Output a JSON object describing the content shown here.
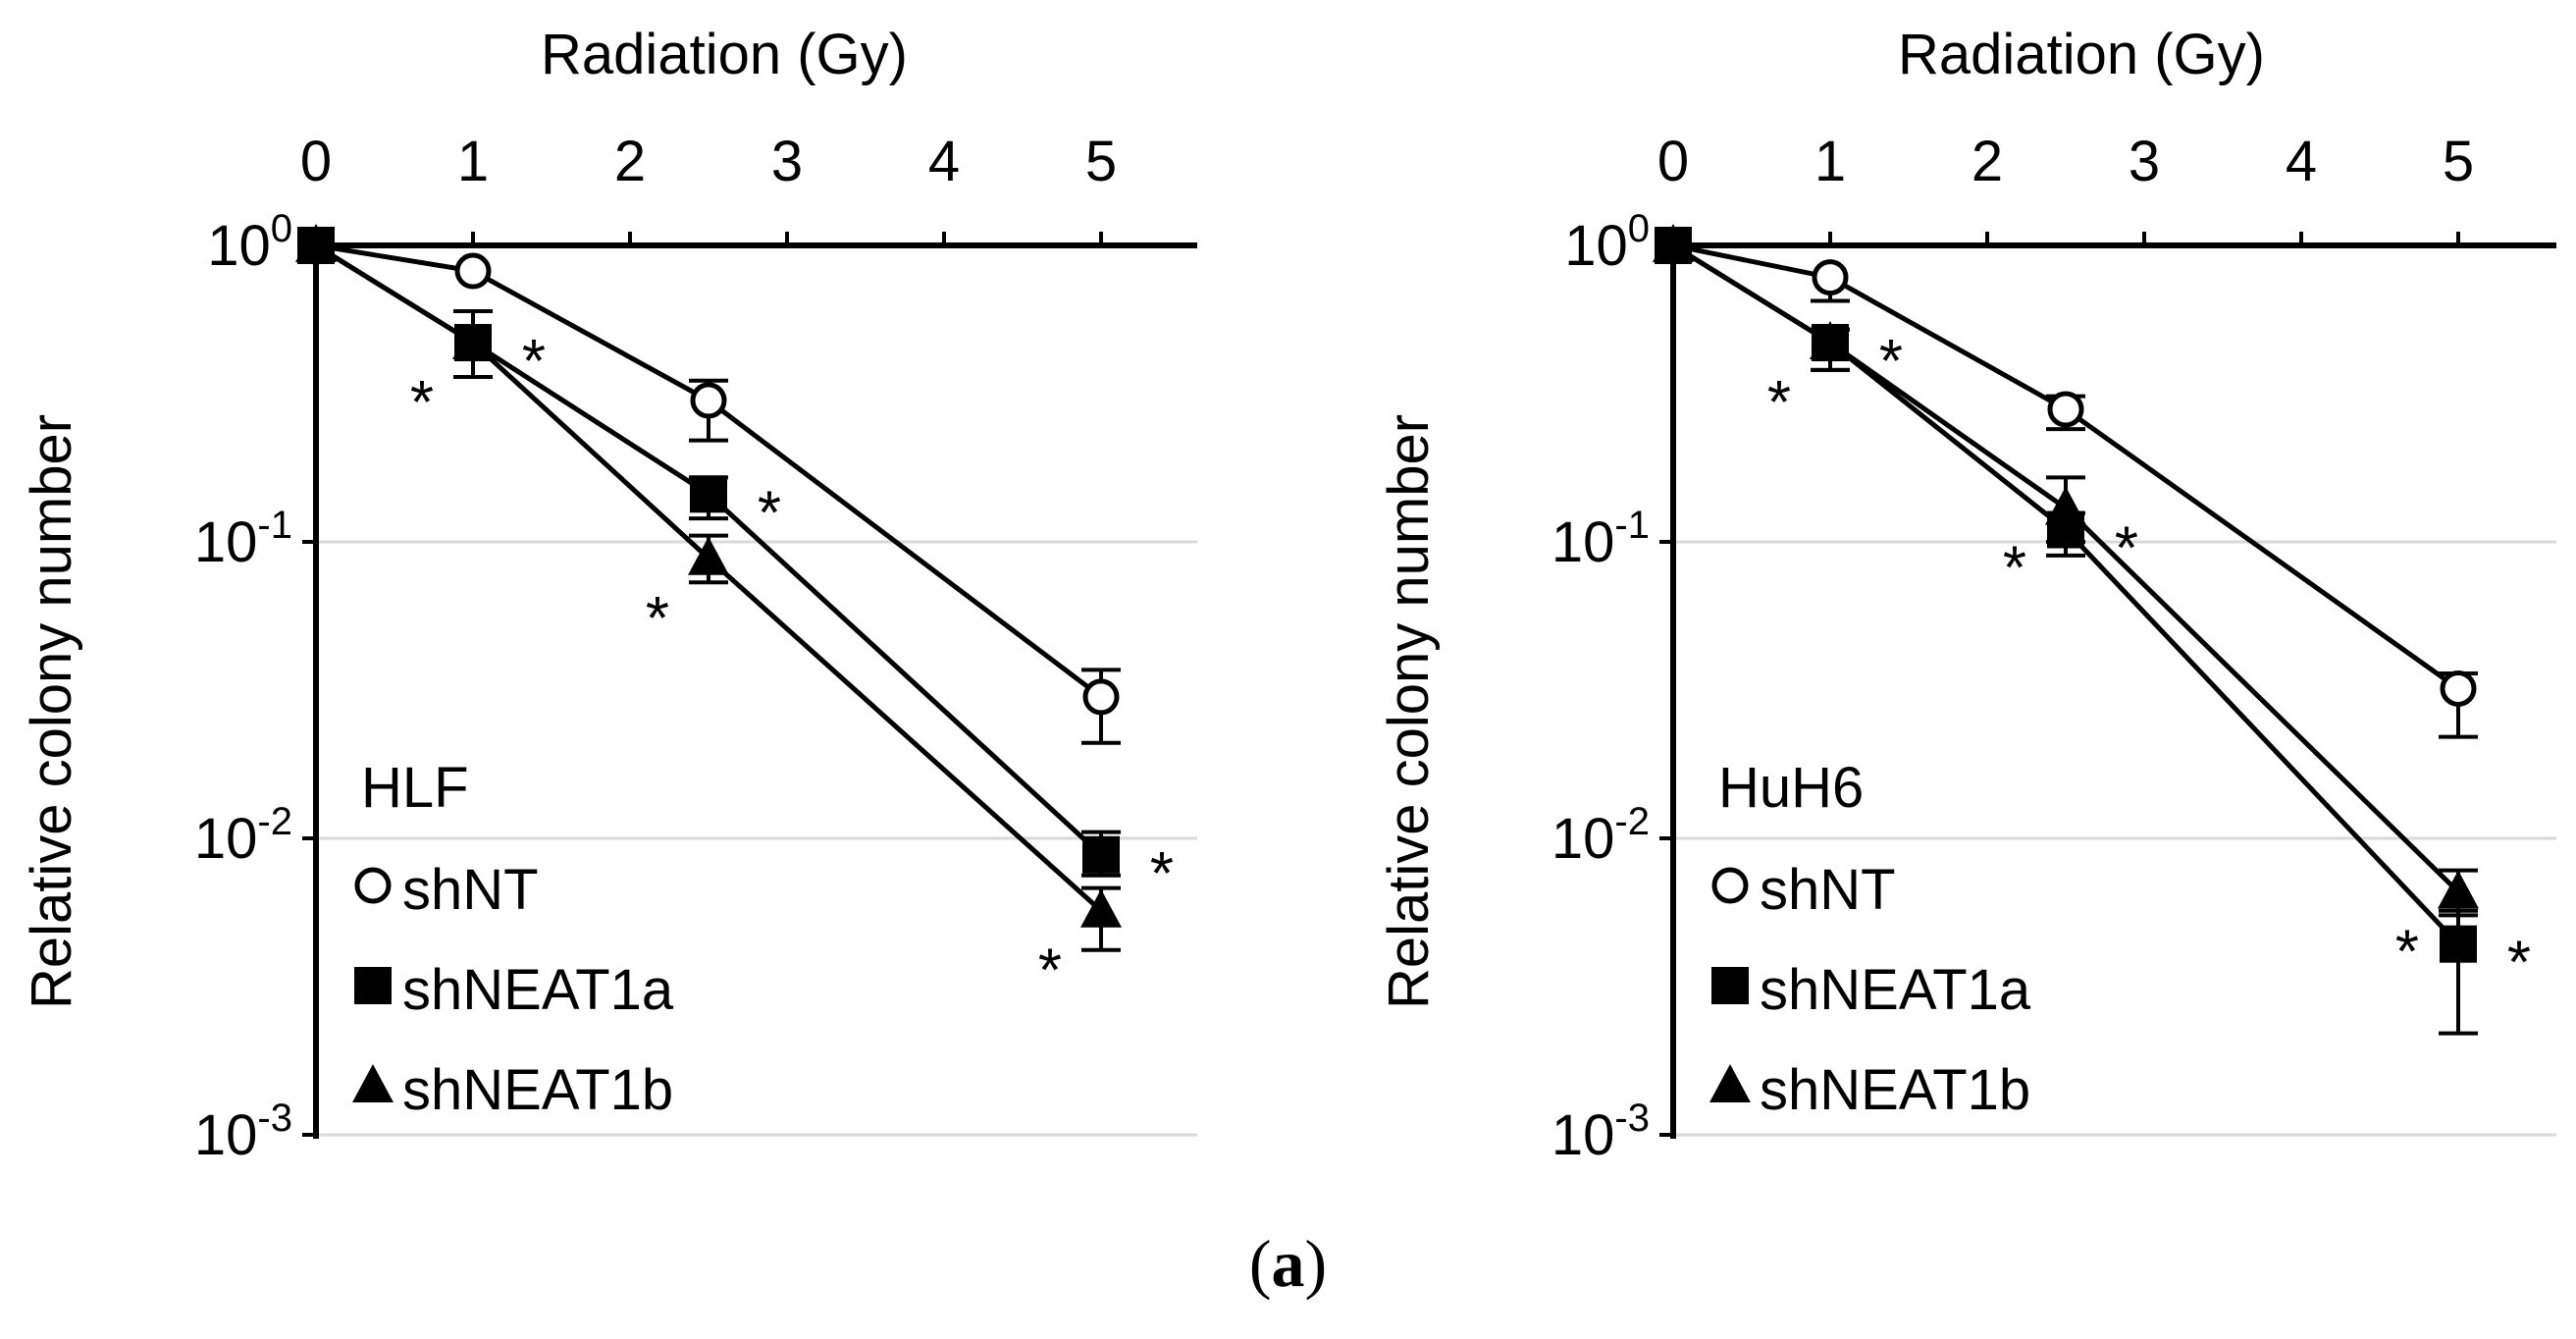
{
  "caption": {
    "open": "(",
    "letter": "a",
    "close": ")"
  },
  "chart_data": [
    {
      "type": "line",
      "panel_label": "HLF",
      "xlabel": "Radiation (Gy)",
      "ylabel": "Relative colony number",
      "x_axis_position": "top",
      "xlim": [
        0,
        5.5
      ],
      "xticks": [
        0,
        1,
        2,
        3,
        4,
        5
      ],
      "ylim": [
        0.001,
        1
      ],
      "yscale": "log",
      "yticks": [
        {
          "value": 1,
          "base": "10",
          "exp": "0"
        },
        {
          "value": 0.1,
          "base": "10",
          "exp": "-1"
        },
        {
          "value": 0.01,
          "base": "10",
          "exp": "-2"
        },
        {
          "value": 0.001,
          "base": "10",
          "exp": "-3"
        }
      ],
      "grid": "horizontal",
      "legend_position": "bottom-left",
      "significance_symbol": "*",
      "series": [
        {
          "name": "shNT",
          "marker": "open-circle",
          "x": [
            0,
            1,
            2.5,
            5
          ],
          "y": [
            1,
            0.82,
            0.3,
            0.03
          ],
          "err_high": [
            null,
            null,
            0.35,
            0.037
          ],
          "err_low": [
            null,
            null,
            0.22,
            0.021
          ],
          "significant": [
            false,
            false,
            false,
            false
          ]
        },
        {
          "name": "shNEAT1a",
          "marker": "filled-square",
          "x": [
            0,
            1,
            2.5,
            5
          ],
          "y": [
            1,
            0.47,
            0.145,
            0.0088
          ],
          "err_high": [
            null,
            0.6,
            0.165,
            0.0105
          ],
          "err_low": [
            null,
            0.36,
            0.12,
            0.0075
          ],
          "significant": [
            false,
            true,
            true,
            true
          ]
        },
        {
          "name": "shNEAT1b",
          "marker": "filled-triangle",
          "x": [
            0,
            1,
            2.5,
            5
          ],
          "y": [
            1,
            0.47,
            0.088,
            0.0057
          ],
          "err_high": [
            null,
            0.6,
            0.105,
            0.0068
          ],
          "err_low": [
            null,
            0.36,
            0.073,
            0.0042
          ],
          "significant": [
            false,
            true,
            true,
            true
          ]
        }
      ]
    },
    {
      "type": "line",
      "panel_label": "HuH6",
      "xlabel": "Radiation (Gy)",
      "ylabel": "Relative colony number",
      "x_axis_position": "top",
      "xlim": [
        0,
        5.5
      ],
      "xticks": [
        0,
        1,
        2,
        3,
        4,
        5
      ],
      "ylim": [
        0.001,
        1
      ],
      "yscale": "log",
      "yticks": [
        {
          "value": 1,
          "base": "10",
          "exp": "0"
        },
        {
          "value": 0.1,
          "base": "10",
          "exp": "-1"
        },
        {
          "value": 0.01,
          "base": "10",
          "exp": "-2"
        },
        {
          "value": 0.001,
          "base": "10",
          "exp": "-3"
        }
      ],
      "grid": "horizontal",
      "legend_position": "bottom-left",
      "significance_symbol": "*",
      "series": [
        {
          "name": "shNT",
          "marker": "open-circle",
          "x": [
            0,
            1,
            2.5,
            5
          ],
          "y": [
            1,
            0.78,
            0.28,
            0.032
          ],
          "err_high": [
            null,
            null,
            0.31,
            0.036
          ],
          "err_low": [
            null,
            0.65,
            0.24,
            0.022
          ],
          "significant": [
            false,
            false,
            false,
            false
          ]
        },
        {
          "name": "shNEAT1a",
          "marker": "filled-square",
          "x": [
            0,
            1,
            2.5,
            5
          ],
          "y": [
            1,
            0.47,
            0.11,
            0.0044
          ],
          "err_high": [
            null,
            0.52,
            0.125,
            0.0057
          ],
          "err_low": [
            null,
            0.38,
            0.09,
            0.0022
          ],
          "significant": [
            false,
            true,
            true,
            true
          ]
        },
        {
          "name": "shNEAT1b",
          "marker": "filled-triangle",
          "x": [
            0,
            1,
            2.5,
            5
          ],
          "y": [
            1,
            0.47,
            0.13,
            0.0066
          ],
          "err_high": [
            null,
            0.52,
            0.165,
            0.0078
          ],
          "err_low": [
            null,
            0.38,
            0.1,
            0.0055
          ],
          "significant": [
            false,
            true,
            true,
            true
          ]
        }
      ]
    }
  ]
}
